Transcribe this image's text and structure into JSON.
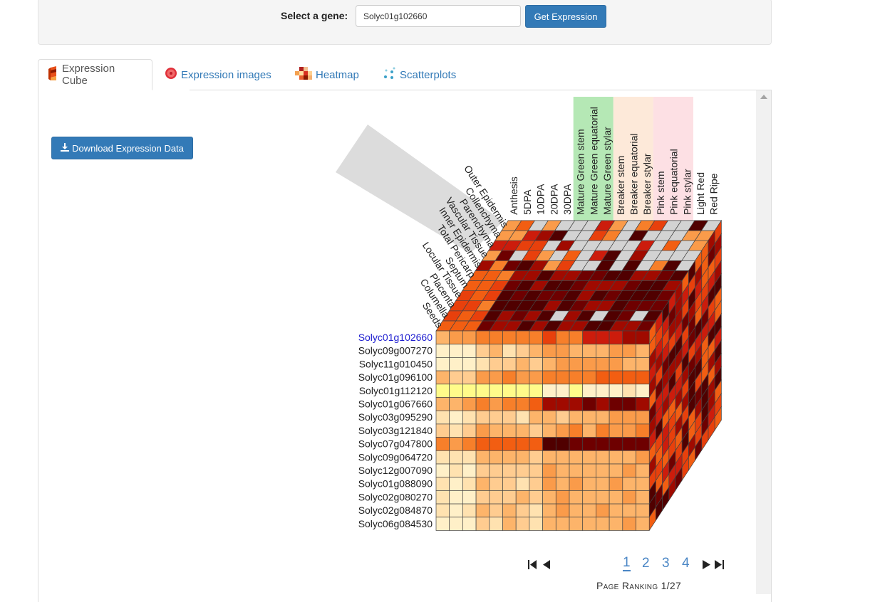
{
  "search": {
    "label": "Select a gene:",
    "value": "Solyc01g102660",
    "button": "Get Expression"
  },
  "tabs": [
    {
      "label": "Expression Cube",
      "icon": "cube-icon"
    },
    {
      "label": "Expression images",
      "icon": "tomato-slice-icon"
    },
    {
      "label": "Heatmap",
      "icon": "heatmap-icon"
    },
    {
      "label": "Scatterplots",
      "icon": "scatter-icon"
    }
  ],
  "download_label": "Download Expression Data",
  "cube": {
    "stages": [
      "Anthesis",
      "5DPA",
      "10DPA",
      "20DPA",
      "30DPA",
      "Mature Green stem",
      "Mature Green equatorial",
      "Mature Green stylar",
      "Breaker stem",
      "Breaker equatorial",
      "Breaker stylar",
      "Pink stem",
      "Pink equatorial",
      "Pink stylar",
      "Light Red",
      "Red Ripe"
    ],
    "stage_highlights": [
      {
        "from": 5,
        "to": 7,
        "color": "#b5e8b5"
      },
      {
        "from": 8,
        "to": 10,
        "color": "#fde9d9"
      },
      {
        "from": 11,
        "to": 13,
        "color": "#fde0e4"
      }
    ],
    "tissues": [
      "Outer Epidermis",
      "Collenchyma",
      "Parenchyma",
      "Vascular Tissue",
      "Inner Epidermis",
      "Total Pericarp",
      "Septum",
      "Locular Tissue",
      "Placenta",
      "Columella",
      "Seeds"
    ],
    "genes": [
      "Solyc01g102660",
      "Solyc09g007270",
      "Solyc11g010450",
      "Solyc01g096100",
      "Solyc01g112120",
      "Solyc01g067660",
      "Solyc03g095290",
      "Solyc03g121840",
      "Solyc07g047800",
      "Solyc09g064720",
      "Solyc12g007090",
      "Solyc01g088090",
      "Solyc02g080270",
      "Solyc02g084870",
      "Solyc06g084530"
    ],
    "selected_gene": 0,
    "colors": {
      "selected_gene": "#2020d0",
      "gene": "#222222",
      "no_data": "#d3d3d3",
      "grid": "#444444"
    }
  },
  "pager": {
    "pages": [
      "1",
      "2",
      "3",
      "4"
    ],
    "current": "1",
    "ranking": "Page Ranking 1/27"
  }
}
